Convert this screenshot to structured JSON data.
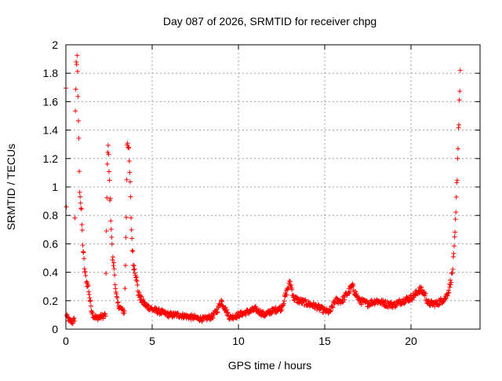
{
  "chart_data": {
    "type": "scatter",
    "title": "Day 087 of 2026, SRMTID for receiver chpg",
    "xlabel": "GPS time / hours",
    "ylabel": "SRMTID / TECUs",
    "xlim": [
      0,
      24
    ],
    "ylim": [
      0,
      2
    ],
    "xticks": [
      0,
      5,
      10,
      15,
      20
    ],
    "yticks": [
      0,
      0.2,
      0.4,
      0.6,
      0.8,
      1,
      1.2,
      1.4,
      1.6,
      1.8,
      2
    ],
    "xtick_labels": [
      "0",
      "5",
      "10",
      "15",
      "20"
    ],
    "ytick_labels": [
      "0",
      "0.2",
      "0.4",
      "0.6",
      "0.8",
      "1",
      "1.2",
      "1.4",
      "1.6",
      "1.8",
      "2"
    ],
    "grid": true,
    "marker": "+",
    "color": "#ff0000",
    "series": [
      {
        "name": "SRMTID",
        "anchors": [
          [
            0.0,
            1.67
          ],
          [
            0.05,
            0.09
          ],
          [
            0.2,
            0.06
          ],
          [
            0.4,
            0.05
          ],
          [
            0.5,
            0.07
          ],
          [
            0.55,
            1.5
          ],
          [
            0.6,
            1.92
          ],
          [
            0.65,
            1.85
          ],
          [
            0.7,
            1.65
          ],
          [
            0.75,
            1.3
          ],
          [
            0.8,
            1.0
          ],
          [
            0.9,
            0.8
          ],
          [
            1.0,
            0.55
          ],
          [
            1.1,
            0.4
          ],
          [
            1.2,
            0.33
          ],
          [
            1.3,
            0.3
          ],
          [
            1.4,
            0.2
          ],
          [
            1.5,
            0.13
          ],
          [
            1.6,
            0.09
          ],
          [
            1.8,
            0.08
          ],
          [
            2.1,
            0.09
          ],
          [
            2.3,
            0.1
          ],
          [
            2.4,
            1.2
          ],
          [
            2.45,
            1.27
          ],
          [
            2.5,
            1.1
          ],
          [
            2.6,
            0.8
          ],
          [
            2.7,
            0.5
          ],
          [
            2.8,
            0.43
          ],
          [
            2.9,
            0.25
          ],
          [
            3.0,
            0.18
          ],
          [
            3.2,
            0.14
          ],
          [
            3.4,
            0.12
          ],
          [
            3.5,
            0.8
          ],
          [
            3.55,
            1.33
          ],
          [
            3.6,
            1.33
          ],
          [
            3.7,
            1.1
          ],
          [
            3.8,
            0.7
          ],
          [
            3.9,
            0.46
          ],
          [
            4.0,
            0.42
          ],
          [
            4.1,
            0.35
          ],
          [
            4.2,
            0.25
          ],
          [
            4.4,
            0.2
          ],
          [
            4.6,
            0.17
          ],
          [
            5.0,
            0.14
          ],
          [
            5.5,
            0.12
          ],
          [
            6.0,
            0.1
          ],
          [
            6.5,
            0.1
          ],
          [
            7.0,
            0.09
          ],
          [
            7.5,
            0.08
          ],
          [
            8.0,
            0.07
          ],
          [
            8.5,
            0.09
          ],
          [
            8.8,
            0.14
          ],
          [
            9.0,
            0.2
          ],
          [
            9.2,
            0.15
          ],
          [
            9.5,
            0.08
          ],
          [
            10.0,
            0.1
          ],
          [
            10.5,
            0.12
          ],
          [
            11.0,
            0.14
          ],
          [
            11.5,
            0.1
          ],
          [
            12.0,
            0.13
          ],
          [
            12.5,
            0.15
          ],
          [
            12.9,
            0.3
          ],
          [
            13.0,
            0.33
          ],
          [
            13.2,
            0.22
          ],
          [
            13.5,
            0.2
          ],
          [
            14.0,
            0.18
          ],
          [
            14.5,
            0.16
          ],
          [
            15.0,
            0.13
          ],
          [
            15.3,
            0.12
          ],
          [
            15.6,
            0.2
          ],
          [
            16.0,
            0.2
          ],
          [
            16.3,
            0.25
          ],
          [
            16.6,
            0.3
          ],
          [
            16.8,
            0.25
          ],
          [
            17.0,
            0.2
          ],
          [
            17.5,
            0.18
          ],
          [
            18.0,
            0.2
          ],
          [
            18.5,
            0.18
          ],
          [
            19.0,
            0.17
          ],
          [
            19.5,
            0.2
          ],
          [
            20.0,
            0.22
          ],
          [
            20.3,
            0.25
          ],
          [
            20.5,
            0.28
          ],
          [
            20.8,
            0.25
          ],
          [
            21.0,
            0.18
          ],
          [
            21.5,
            0.18
          ],
          [
            22.0,
            0.22
          ],
          [
            22.2,
            0.28
          ],
          [
            22.4,
            0.4
          ],
          [
            22.5,
            0.55
          ],
          [
            22.6,
            0.8
          ],
          [
            22.7,
            1.2
          ],
          [
            22.8,
            1.6
          ],
          [
            22.85,
            1.82
          ]
        ]
      }
    ]
  }
}
